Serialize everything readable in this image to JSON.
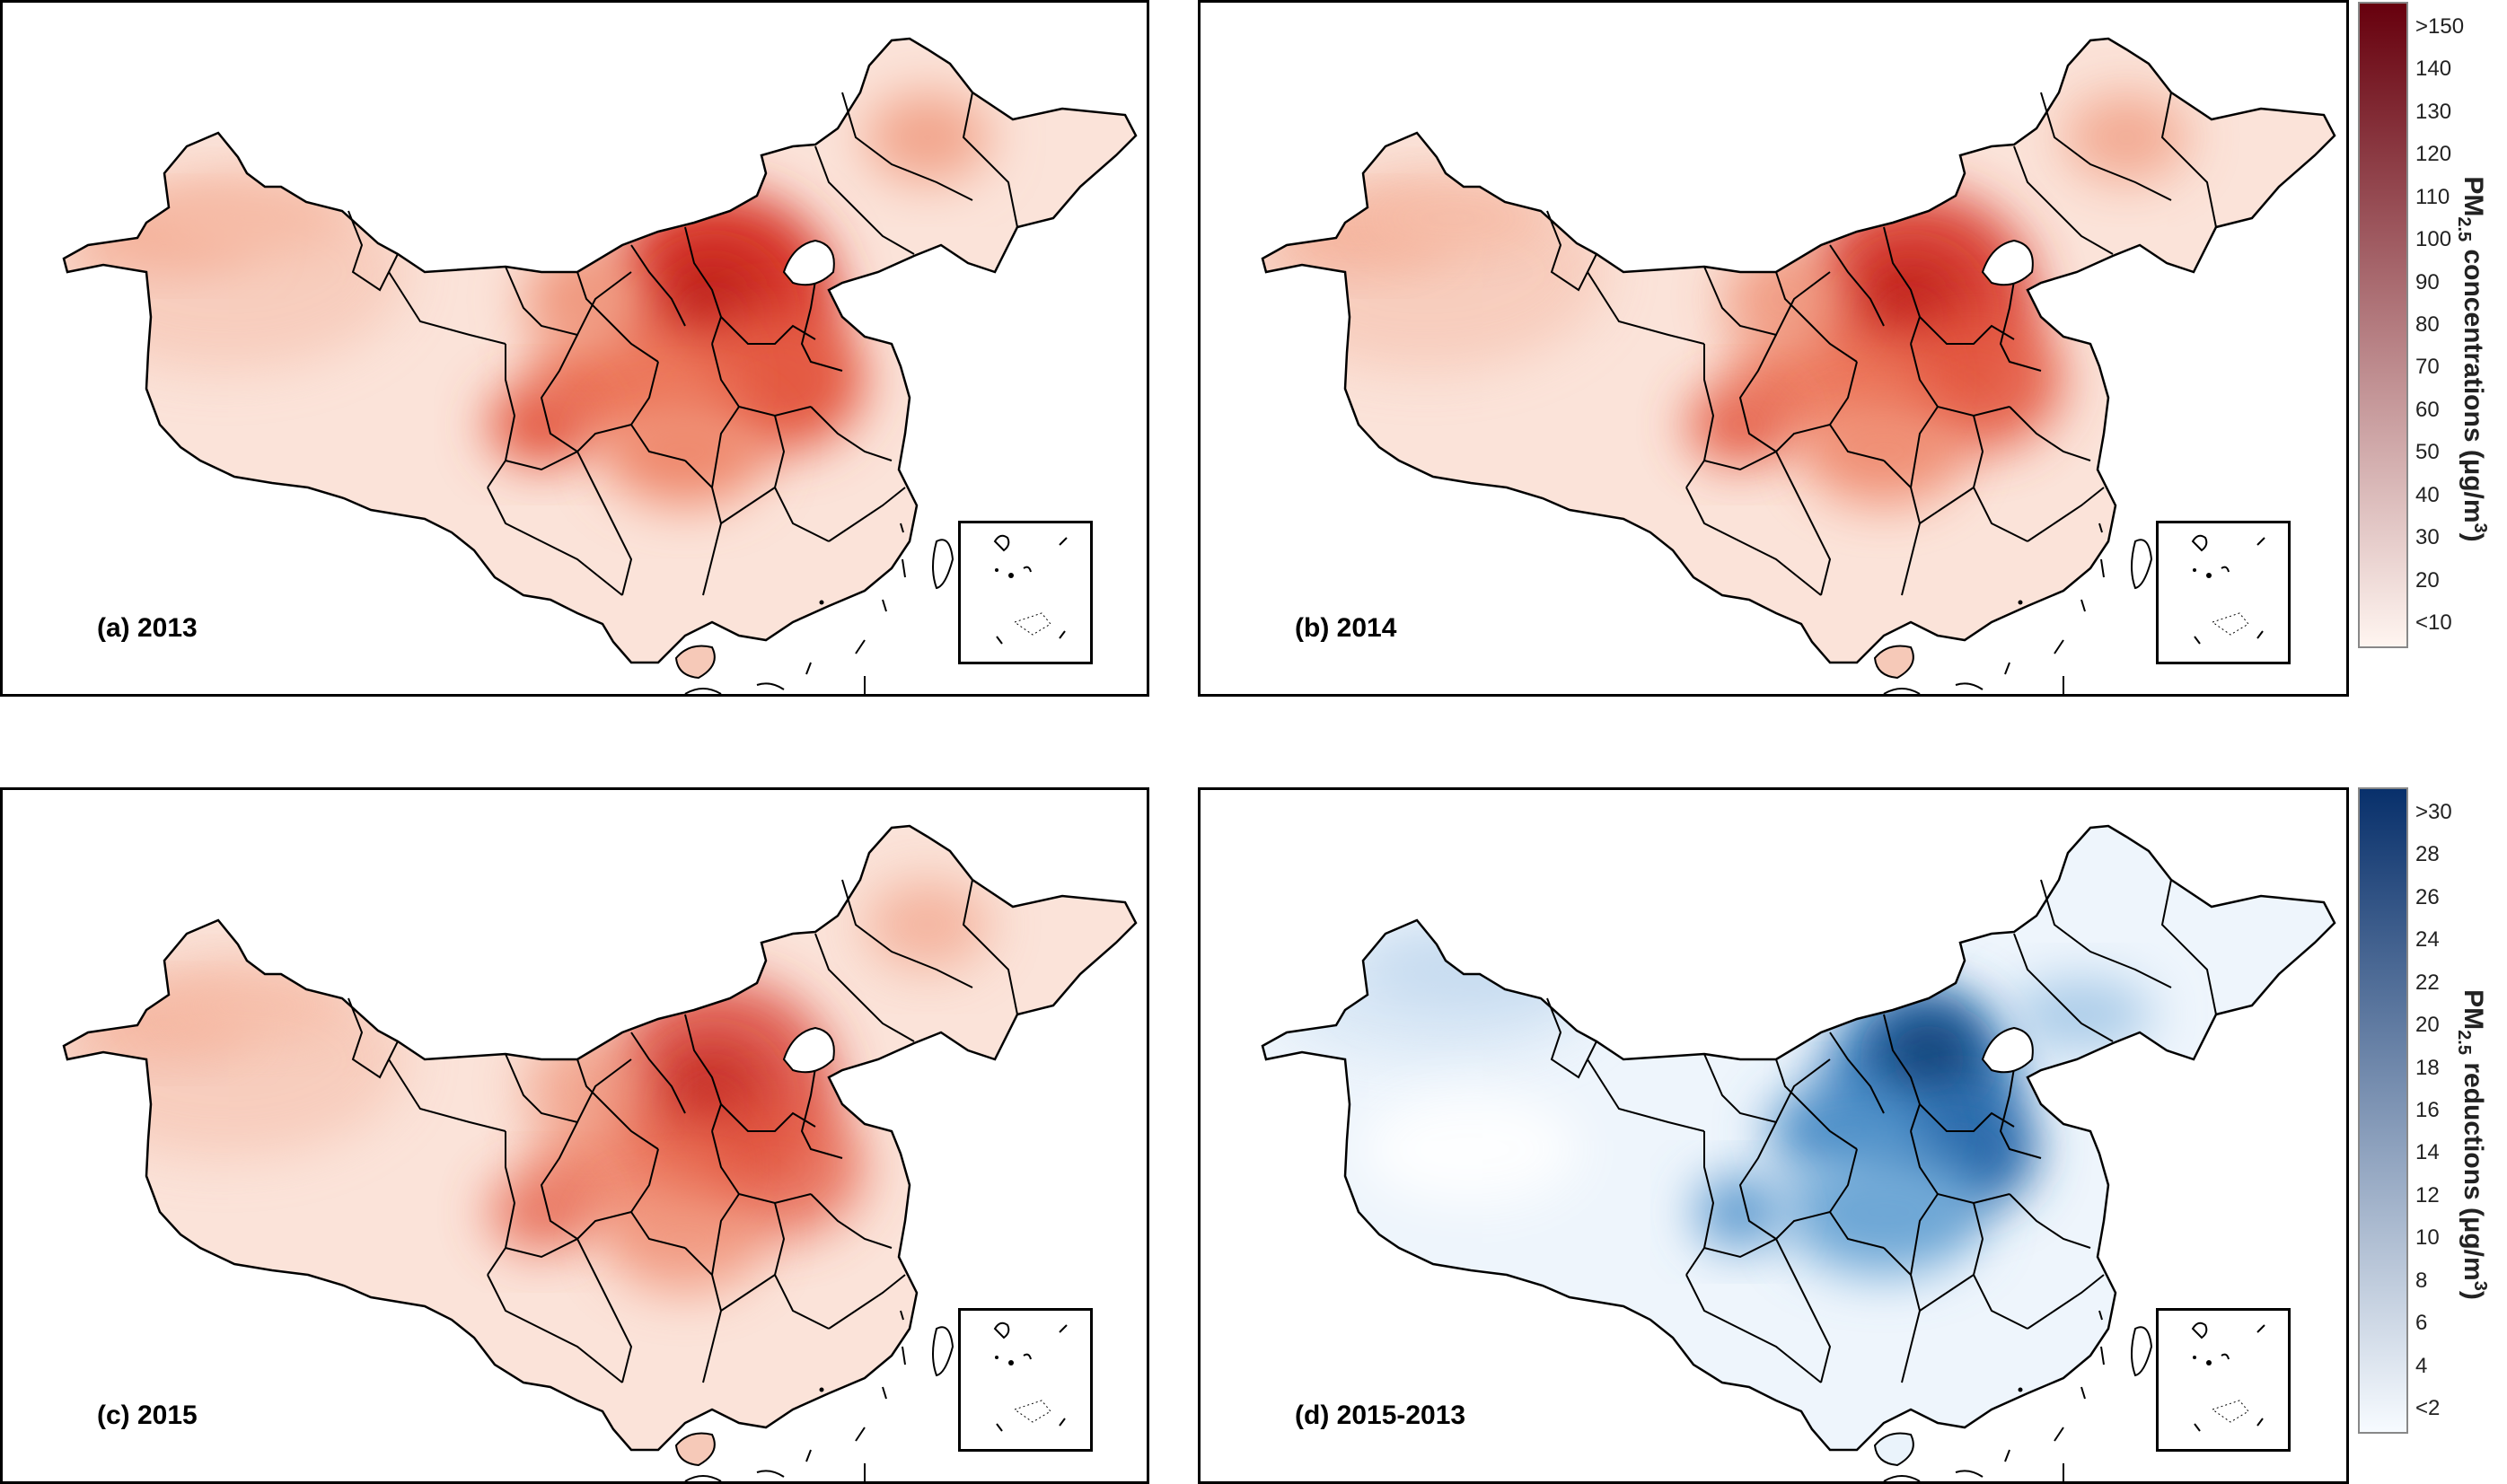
{
  "panels": [
    {
      "id": "a",
      "label": "(a) 2013",
      "scheme": "red",
      "hotspot": 1.0
    },
    {
      "id": "b",
      "label": "(b) 2014",
      "scheme": "red",
      "hotspot": 0.9
    },
    {
      "id": "c",
      "label": "(c) 2015",
      "scheme": "red",
      "hotspot": 0.75
    },
    {
      "id": "d",
      "label": "(d) 2015-2013",
      "scheme": "blue",
      "hotspot": 1.0
    }
  ],
  "colorbars": {
    "concentration": {
      "title_main": "PM",
      "title_sub": "2.5",
      "title_rest": " concentrations (μg/m",
      "title_sup": "3",
      "title_end": ")",
      "ticks": [
        ">150",
        "140",
        "130",
        "120",
        "110",
        "100",
        "90",
        "80",
        "70",
        "60",
        "50",
        "40",
        "30",
        "20",
        "<10"
      ],
      "color_high": "#67000d",
      "color_low": "#fff5f0"
    },
    "reduction": {
      "title_main": "PM",
      "title_sub": "2.5",
      "title_rest": " reductions (μg/m",
      "title_sup": "3",
      "title_end": ")",
      "ticks": [
        ">30",
        "28",
        "26",
        "24",
        "22",
        "20",
        "18",
        "16",
        "14",
        "12",
        "10",
        "8",
        "6",
        "4",
        "<2"
      ],
      "color_high": "#08306b",
      "color_low": "#f7fbff"
    }
  }
}
